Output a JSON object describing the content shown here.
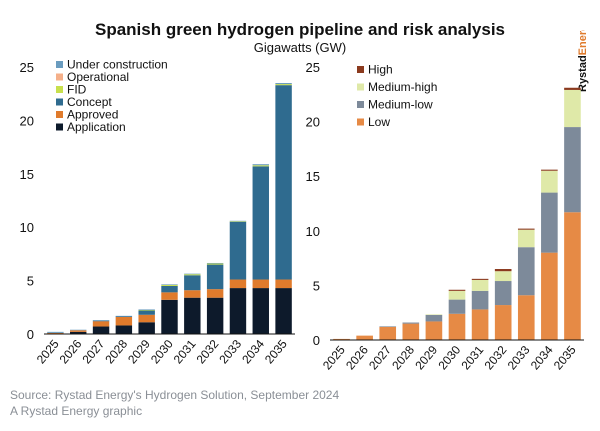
{
  "header": {
    "title": "Spanish green hydrogen pipeline and risk analysis",
    "subtitle": "Gigawatts (GW)"
  },
  "brand": {
    "name": "Rystad",
    "accent": "Energy",
    "color": "#e07b2c"
  },
  "footer": {
    "source": "Source: Rystad Energy's Hydrogen Solution, September 2024",
    "credit": "A Rystad Energy graphic"
  },
  "chart_data": [
    {
      "type": "bar",
      "stacked": true,
      "categories": [
        "2025",
        "2026",
        "2027",
        "2028",
        "2029",
        "2030",
        "2031",
        "2032",
        "2033",
        "2034",
        "2035"
      ],
      "ylim": [
        0,
        25
      ],
      "yticks": [
        0,
        5,
        10,
        15,
        20,
        25
      ],
      "legend_position": "top-left",
      "legend_order": [
        "Under construction",
        "Operational",
        "FID",
        "Concept",
        "Approved",
        "Application"
      ],
      "series": [
        {
          "name": "Application",
          "color": "#0d1a2b",
          "values": [
            0.05,
            0.2,
            0.7,
            0.8,
            1.1,
            3.2,
            3.4,
            3.4,
            4.3,
            4.3,
            4.3
          ]
        },
        {
          "name": "Approved",
          "color": "#e07b2c",
          "values": [
            0.05,
            0.15,
            0.5,
            0.8,
            0.7,
            0.7,
            0.7,
            0.8,
            0.8,
            0.8,
            0.8
          ]
        },
        {
          "name": "Concept",
          "color": "#2f6b8f",
          "values": [
            0.0,
            0.0,
            0.05,
            0.05,
            0.4,
            0.6,
            1.4,
            2.3,
            5.4,
            10.6,
            18.2
          ]
        },
        {
          "name": "FID",
          "color": "#c8e04d",
          "values": [
            0.0,
            0.0,
            0.0,
            0.0,
            0.05,
            0.1,
            0.1,
            0.1,
            0.05,
            0.1,
            0.1
          ]
        },
        {
          "name": "Operational",
          "color": "#f5b08a",
          "values": [
            0.0,
            0.0,
            0.0,
            0.0,
            0.0,
            0.0,
            0.0,
            0.0,
            0.0,
            0.0,
            0.0
          ]
        },
        {
          "name": "Under construction",
          "color": "#6a9cbf",
          "values": [
            0.1,
            0.05,
            0.05,
            0.05,
            0.05,
            0.05,
            0.05,
            0.05,
            0.05,
            0.1,
            0.1
          ]
        }
      ]
    },
    {
      "type": "bar",
      "stacked": true,
      "categories": [
        "2025",
        "2026",
        "2027",
        "2028",
        "2029",
        "2030",
        "2031",
        "2032",
        "2033",
        "2034",
        "2035"
      ],
      "ylim": [
        0,
        25
      ],
      "yticks": [
        0,
        5,
        10,
        15,
        20,
        25
      ],
      "legend_position": "top-left",
      "legend_order": [
        "High",
        "Medium-high",
        "Medium-low",
        "Low"
      ],
      "series": [
        {
          "name": "Low",
          "color": "#e68a45",
          "values": [
            0.1,
            0.4,
            1.2,
            1.5,
            1.7,
            2.4,
            2.8,
            3.2,
            4.1,
            8.0,
            11.7
          ]
        },
        {
          "name": "Medium-low",
          "color": "#7d8a9a",
          "values": [
            0.0,
            0.0,
            0.05,
            0.1,
            0.6,
            1.3,
            1.7,
            2.2,
            4.4,
            5.5,
            7.8
          ]
        },
        {
          "name": "Medium-high",
          "color": "#dfe9a8",
          "values": [
            0.0,
            0.0,
            0.0,
            0.0,
            0.05,
            0.8,
            1.0,
            0.9,
            1.6,
            2.0,
            3.4
          ]
        },
        {
          "name": "High",
          "color": "#8b3a1e",
          "values": [
            0.0,
            0.0,
            0.0,
            0.0,
            0.0,
            0.1,
            0.1,
            0.2,
            0.1,
            0.1,
            0.2
          ]
        }
      ]
    }
  ]
}
